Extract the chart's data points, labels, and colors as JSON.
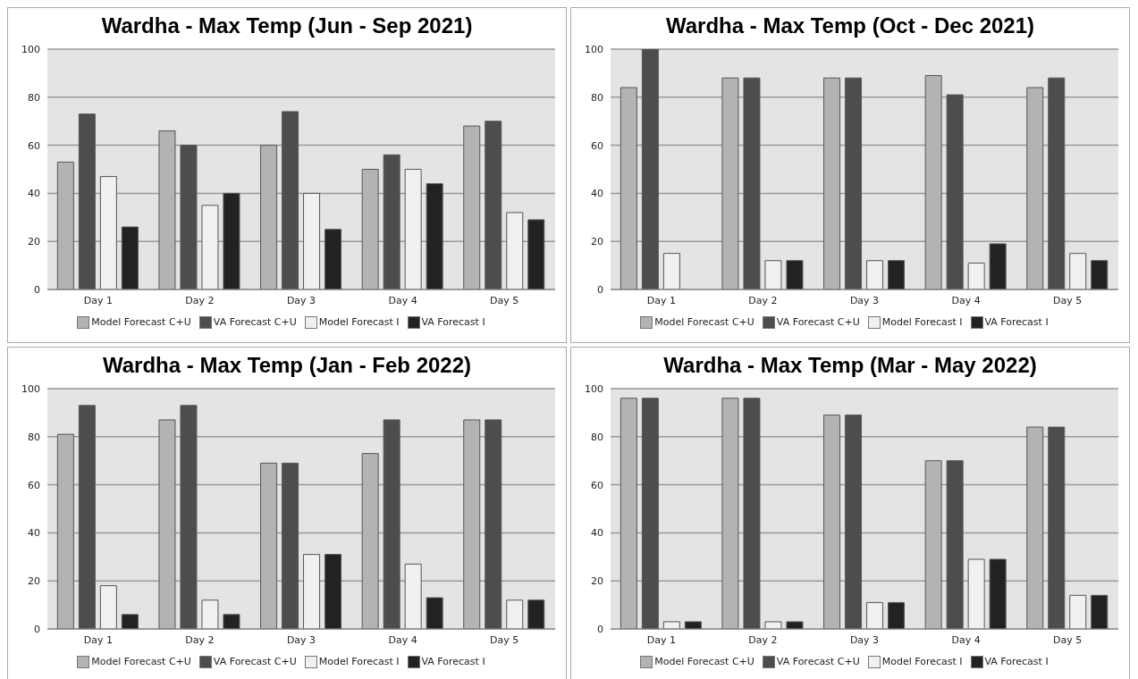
{
  "chart_data": [
    {
      "type": "bar",
      "title": "Wardha - Max Temp (Jun - Sep 2021)",
      "categories": [
        "Day 1",
        "Day 2",
        "Day 3",
        "Day 4",
        "Day 5"
      ],
      "series": [
        {
          "name": "Model Forecast C+U",
          "color": "#b3b3b3",
          "values": [
            53,
            66,
            60,
            50,
            68
          ]
        },
        {
          "name": "VA Forecast C+U",
          "color": "#4d4d4d",
          "values": [
            73,
            60,
            74,
            56,
            70
          ]
        },
        {
          "name": "Model Forecast I",
          "color": "#f0f0f0",
          "values": [
            47,
            35,
            40,
            50,
            32
          ]
        },
        {
          "name": "VA Forecast I",
          "color": "#222222",
          "values": [
            26,
            40,
            25,
            44,
            29
          ]
        }
      ],
      "ylim": [
        0,
        100
      ],
      "yticks": [
        0,
        20,
        40,
        60,
        80,
        100
      ],
      "grid": "y",
      "legend": "bottom"
    },
    {
      "type": "bar",
      "title": "Wardha - Max Temp (Oct - Dec 2021)",
      "categories": [
        "Day 1",
        "Day 2",
        "Day 3",
        "Day 4",
        "Day 5"
      ],
      "series": [
        {
          "name": "Model Forecast C+U",
          "color": "#b3b3b3",
          "values": [
            84,
            88,
            88,
            89,
            84
          ]
        },
        {
          "name": "VA Forecast C+U",
          "color": "#4d4d4d",
          "values": [
            100,
            88,
            88,
            81,
            88
          ]
        },
        {
          "name": "Model Forecast I",
          "color": "#f0f0f0",
          "values": [
            15,
            12,
            12,
            11,
            15
          ]
        },
        {
          "name": "VA Forecast I",
          "color": "#222222",
          "values": [
            0,
            12,
            12,
            19,
            12
          ]
        }
      ],
      "ylim": [
        0,
        100
      ],
      "yticks": [
        0,
        20,
        40,
        60,
        80,
        100
      ],
      "grid": "y",
      "legend": "bottom"
    },
    {
      "type": "bar",
      "title": "Wardha - Max Temp (Jan - Feb 2022)",
      "categories": [
        "Day 1",
        "Day 2",
        "Day 3",
        "Day 4",
        "Day 5"
      ],
      "series": [
        {
          "name": "Model Forecast C+U",
          "color": "#b3b3b3",
          "values": [
            81,
            87,
            69,
            73,
            87
          ]
        },
        {
          "name": "VA Forecast C+U",
          "color": "#4d4d4d",
          "values": [
            93,
            93,
            69,
            87,
            87
          ]
        },
        {
          "name": "Model Forecast I",
          "color": "#f0f0f0",
          "values": [
            18,
            12,
            31,
            27,
            12
          ]
        },
        {
          "name": "VA Forecast I",
          "color": "#222222",
          "values": [
            6,
            6,
            31,
            13,
            12
          ]
        }
      ],
      "ylim": [
        0,
        100
      ],
      "yticks": [
        0,
        20,
        40,
        60,
        80,
        100
      ],
      "grid": "y",
      "legend": "bottom"
    },
    {
      "type": "bar",
      "title": "Wardha - Max Temp (Mar - May 2022)",
      "categories": [
        "Day 1",
        "Day 2",
        "Day 3",
        "Day 4",
        "Day 5"
      ],
      "series": [
        {
          "name": "Model Forecast C+U",
          "color": "#b3b3b3",
          "values": [
            96,
            96,
            89,
            70,
            84
          ]
        },
        {
          "name": "VA Forecast C+U",
          "color": "#4d4d4d",
          "values": [
            96,
            96,
            89,
            70,
            84
          ]
        },
        {
          "name": "Model Forecast I",
          "color": "#f0f0f0",
          "values": [
            3,
            3,
            11,
            29,
            14
          ]
        },
        {
          "name": "VA Forecast I",
          "color": "#222222",
          "values": [
            3,
            3,
            11,
            29,
            14
          ]
        }
      ],
      "ylim": [
        0,
        100
      ],
      "yticks": [
        0,
        20,
        40,
        60,
        80,
        100
      ],
      "grid": "y",
      "legend": "bottom"
    }
  ]
}
